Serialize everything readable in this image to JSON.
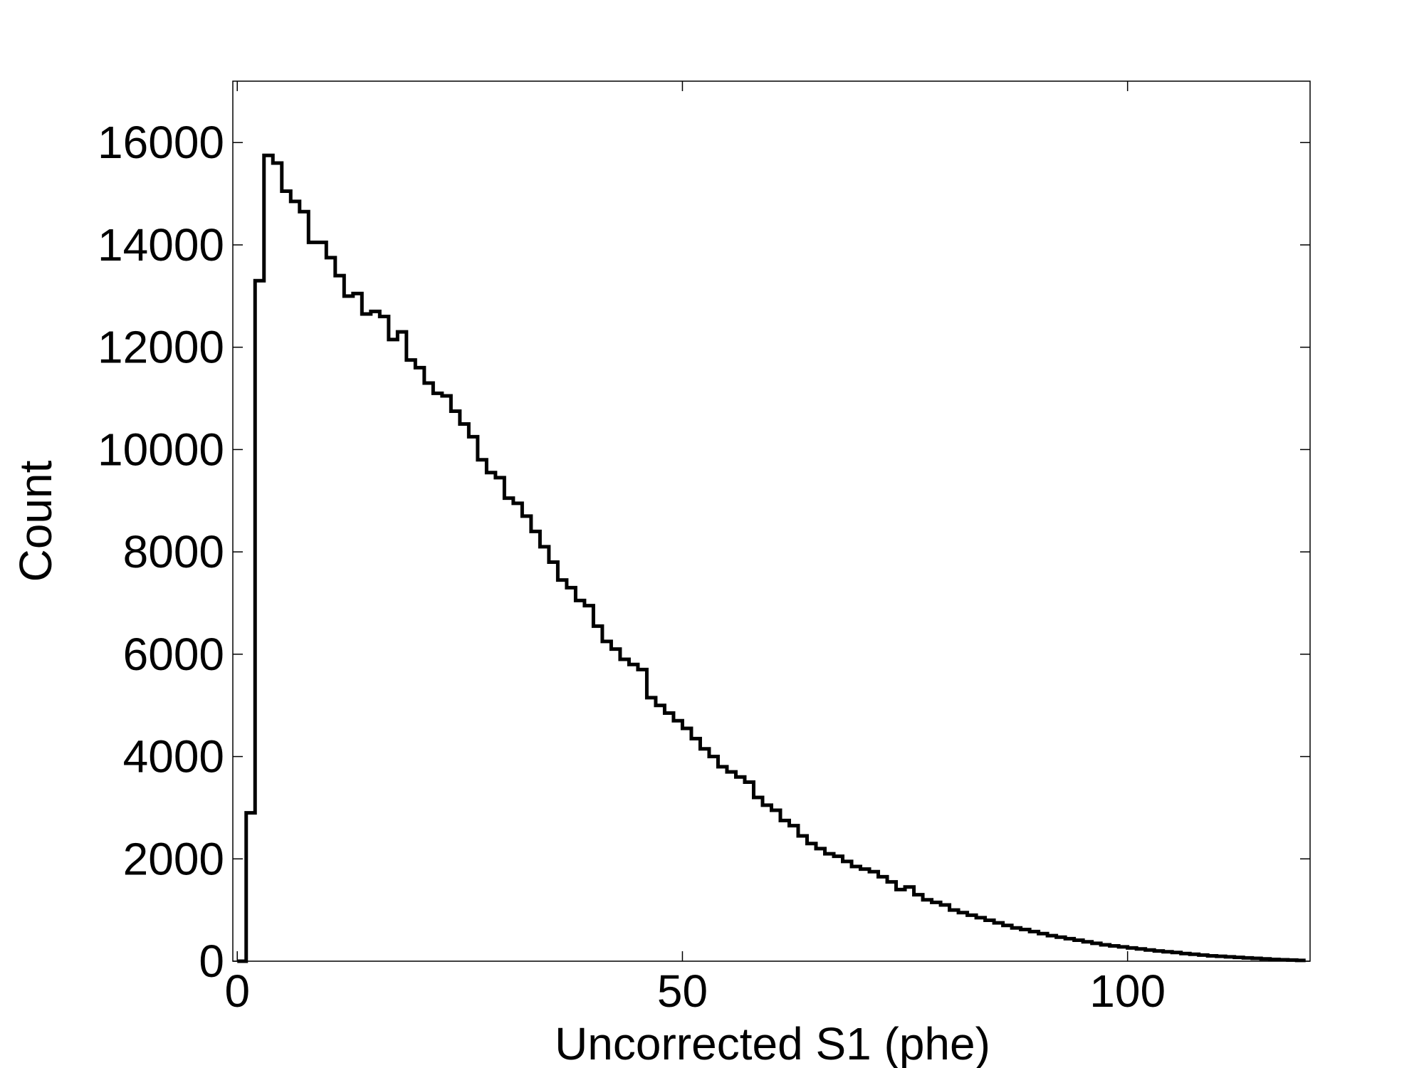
{
  "chart_data": {
    "type": "histogram",
    "title": "",
    "xlabel": "Uncorrected S1 (phe)",
    "ylabel": "Count",
    "xlim": [
      -0.5,
      120.5
    ],
    "ylim": [
      0,
      17200
    ],
    "xticks": [
      0,
      50,
      100
    ],
    "yticks": [
      0,
      2000,
      4000,
      6000,
      8000,
      10000,
      12000,
      14000,
      16000
    ],
    "xtick_labels": [
      "0",
      "50",
      "100"
    ],
    "ytick_labels": [
      "0",
      "2000",
      "4000",
      "6000",
      "8000",
      "10000",
      "12000",
      "14000",
      "16000"
    ],
    "grid": false,
    "line_color": "#000000",
    "bin_width": 1,
    "bin_edges_start": 0,
    "series": [
      {
        "values": [
          0,
          2900,
          13300,
          15750,
          15600,
          15050,
          14850,
          14650,
          14050,
          14050,
          13750,
          13400,
          13000,
          13050,
          12650,
          12700,
          12600,
          12150,
          12300,
          11750,
          11600,
          11300,
          11100,
          11050,
          10750,
          10500,
          10250,
          9800,
          9550,
          9450,
          9050,
          8950,
          8700,
          8400,
          8100,
          7800,
          7450,
          7300,
          7050,
          6950,
          6550,
          6250,
          6100,
          5900,
          5800,
          5700,
          5150,
          5000,
          4850,
          4700,
          4550,
          4350,
          4150,
          4000,
          3800,
          3700,
          3600,
          3500,
          3200,
          3050,
          2950,
          2750,
          2650,
          2450,
          2300,
          2200,
          2100,
          2050,
          1950,
          1850,
          1800,
          1750,
          1650,
          1550,
          1400,
          1450,
          1300,
          1200,
          1150,
          1100,
          1000,
          950,
          900,
          850,
          800,
          750,
          700,
          650,
          620,
          580,
          540,
          500,
          470,
          440,
          410,
          380,
          350,
          320,
          300,
          280,
          260,
          240,
          220,
          200,
          185,
          170,
          150,
          135,
          120,
          105,
          95,
          85,
          75,
          65,
          55,
          45,
          35,
          28,
          22,
          15
        ]
      }
    ]
  }
}
